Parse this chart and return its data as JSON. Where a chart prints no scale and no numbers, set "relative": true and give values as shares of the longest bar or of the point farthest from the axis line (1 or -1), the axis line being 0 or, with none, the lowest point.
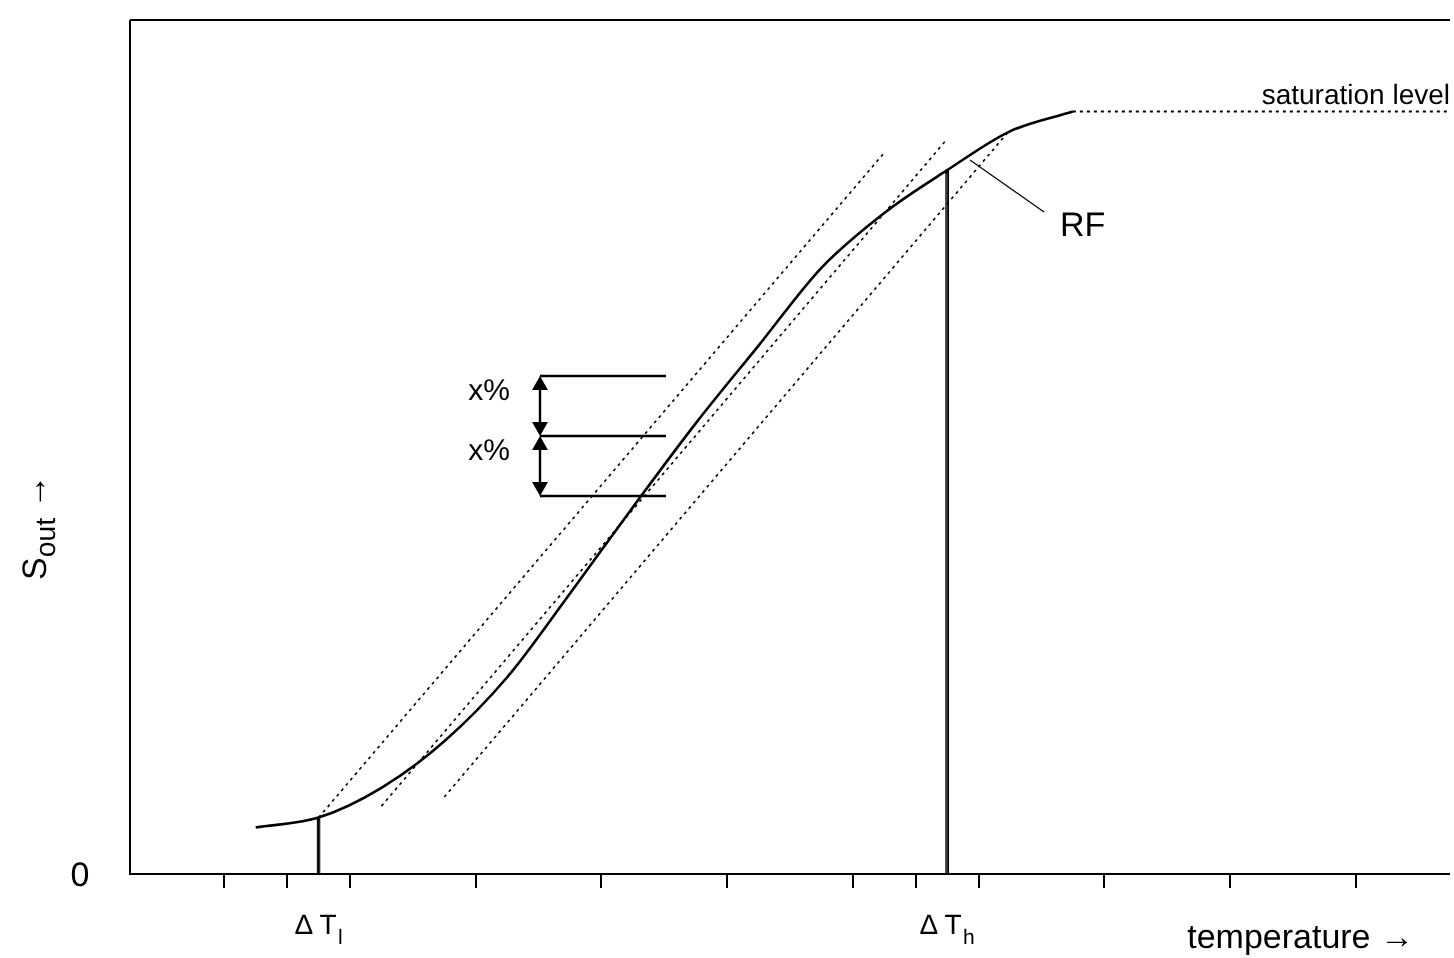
{
  "chart_data": {
    "type": "line",
    "relative": true,
    "xlabel": "temperature →",
    "ylabel": "S$_{out}$ →",
    "categories": [
      null,
      null,
      null,
      "Δ T$_{l}$",
      null,
      null,
      null,
      null,
      null,
      null,
      null,
      null,
      null,
      "Δ T$_{h}$",
      null,
      null,
      null,
      null,
      null,
      null,
      null,
      null
    ],
    "grid": false,
    "legend": false,
    "marker": "none",
    "series": [
      {
        "color": "#000000",
        "line_style": "solid",
        "values": [
          null,
          null,
          0.061,
          0.074,
          0.113,
          0.174,
          0.258,
          0.368,
          0.481,
          0.591,
          0.693,
          0.795,
          0.867,
          0.923,
          0.974,
          1,
          null,
          null,
          null,
          null,
          null,
          null
        ]
      },
      {
        "name": "saturation level",
        "color": "#000000",
        "line_style": "dotted",
        "values": [
          null,
          null,
          null,
          null,
          null,
          null,
          null,
          null,
          null,
          null,
          null,
          null,
          null,
          null,
          null,
          1,
          1,
          1,
          1,
          1,
          1,
          1
        ]
      },
      {
        "color": "#000000",
        "line_style": "dotted",
        "values": [
          null,
          null,
          null,
          0.074,
          null,
          null,
          null,
          null,
          null,
          null,
          null,
          null,
          0.946,
          null,
          null,
          null,
          null,
          null,
          null,
          null,
          null,
          null
        ]
      },
      {
        "color": "#000000",
        "line_style": "dotted",
        "values": [
          null,
          null,
          null,
          null,
          0.089,
          null,
          null,
          null,
          null,
          null,
          null,
          null,
          null,
          0.964,
          null,
          null,
          null,
          null,
          null,
          null,
          null,
          null
        ]
      },
      {
        "color": "#000000",
        "line_style": "dotted",
        "values": [
          null,
          null,
          null,
          null,
          null,
          0.101,
          null,
          null,
          null,
          null,
          null,
          null,
          null,
          null,
          0.976,
          null,
          null,
          null,
          null,
          null,
          null,
          null
        ]
      },
      {
        "type": "bar",
        "color": "#000000",
        "values": [
          null,
          null,
          null,
          0.074,
          null,
          null,
          null,
          null,
          null,
          null,
          null,
          null,
          null,
          0.923,
          null,
          null,
          null,
          null,
          null,
          null,
          null,
          null
        ]
      }
    ],
    "annotations": [
      "0",
      "x%",
      "x%",
      "RF"
    ]
  }
}
